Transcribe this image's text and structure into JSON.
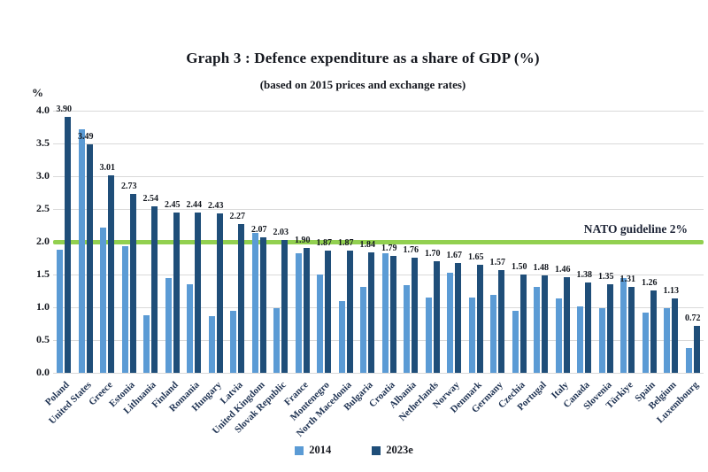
{
  "header": {
    "title": "Graph 3 : Defence expenditure as a share of GDP (%)",
    "subtitle": "(based on 2015 prices and exchange rates)"
  },
  "colors": {
    "series_2014": "#5B9BD5",
    "series_2023e": "#1F4E79",
    "guideline_green": "#92D050",
    "gridline": "#D9D9D9"
  },
  "chart_data": {
    "type": "bar",
    "title": "Graph 3 : Defence expenditure as a share of GDP (%)",
    "subtitle": "(based on 2015 prices and exchange rates)",
    "y_axis_unit": "%",
    "ylim": [
      0,
      4.0
    ],
    "yticks": [
      "4.0",
      "3.5",
      "3.0",
      "2.5",
      "2.0",
      "1.5",
      "1.0",
      "0.5",
      "0.0"
    ],
    "grid": true,
    "legend_position": "bottom-center",
    "categories": [
      "Poland",
      "United States",
      "Greece",
      "Estonia",
      "Lithuania",
      "Finland",
      "Romania",
      "Hungary",
      "Latvia",
      "United Kingdom",
      "Slovak Republic",
      "France",
      "Montenegro",
      "North Macedonia",
      "Bulgaria",
      "Croatia",
      "Albania",
      "Netherlands",
      "Norway",
      "Denmark",
      "Germany",
      "Czechia",
      "Portugal",
      "Italy",
      "Canada",
      "Slovenia",
      "Türkiye",
      "Spain",
      "Belgium",
      "Luxembourg"
    ],
    "series": [
      {
        "name": "2014",
        "color": "#5B9BD5",
        "labeled": false,
        "values": [
          1.88,
          3.71,
          2.21,
          1.93,
          0.88,
          1.45,
          1.35,
          0.86,
          0.94,
          2.14,
          0.99,
          1.82,
          1.5,
          1.09,
          1.31,
          1.82,
          1.34,
          1.15,
          1.53,
          1.15,
          1.19,
          0.95,
          1.31,
          1.14,
          1.01,
          0.98,
          1.45,
          0.92,
          0.98,
          0.38
        ]
      },
      {
        "name": "2023e",
        "color": "#1F4E79",
        "labeled": true,
        "values": [
          3.9,
          3.49,
          3.01,
          2.73,
          2.54,
          2.45,
          2.44,
          2.43,
          2.27,
          2.07,
          2.03,
          1.9,
          1.87,
          1.87,
          1.84,
          1.79,
          1.76,
          1.7,
          1.67,
          1.65,
          1.57,
          1.5,
          1.48,
          1.46,
          1.38,
          1.35,
          1.31,
          1.26,
          1.13,
          0.72
        ]
      }
    ],
    "value_labels": [
      "3.90",
      "3.49",
      "3.01",
      "2.73",
      "2.54",
      "2.45",
      "2.44",
      "2.43",
      "2.27",
      "2.07",
      "2.03",
      "1.90",
      "1.87",
      "1.87",
      "1.84",
      "1.79",
      "1.76",
      "1.70",
      "1.67",
      "1.65",
      "1.57",
      "1.50",
      "1.48",
      "1.46",
      "1.38",
      "1.35",
      "1.31",
      "1.26",
      "1.13",
      "0.72"
    ],
    "guideline": {
      "value": 2.0,
      "label": "NATO guideline 2%",
      "color": "#92D050"
    }
  }
}
